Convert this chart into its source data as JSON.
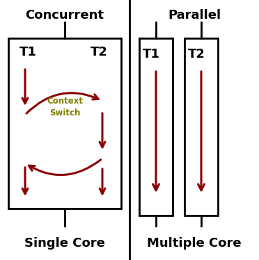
{
  "bg_color": "#ffffff",
  "left_title": "Concurrent",
  "right_title": "Parallel",
  "left_label": "Single Core",
  "right_label": "Multiple Core",
  "arrow_color": "#8B0000",
  "context_switch_color": "#808000",
  "text_color": "#000000",
  "title_fontsize": 13,
  "label_fontsize": 13,
  "thread_label_fontsize": 13,
  "lw": 2.2
}
